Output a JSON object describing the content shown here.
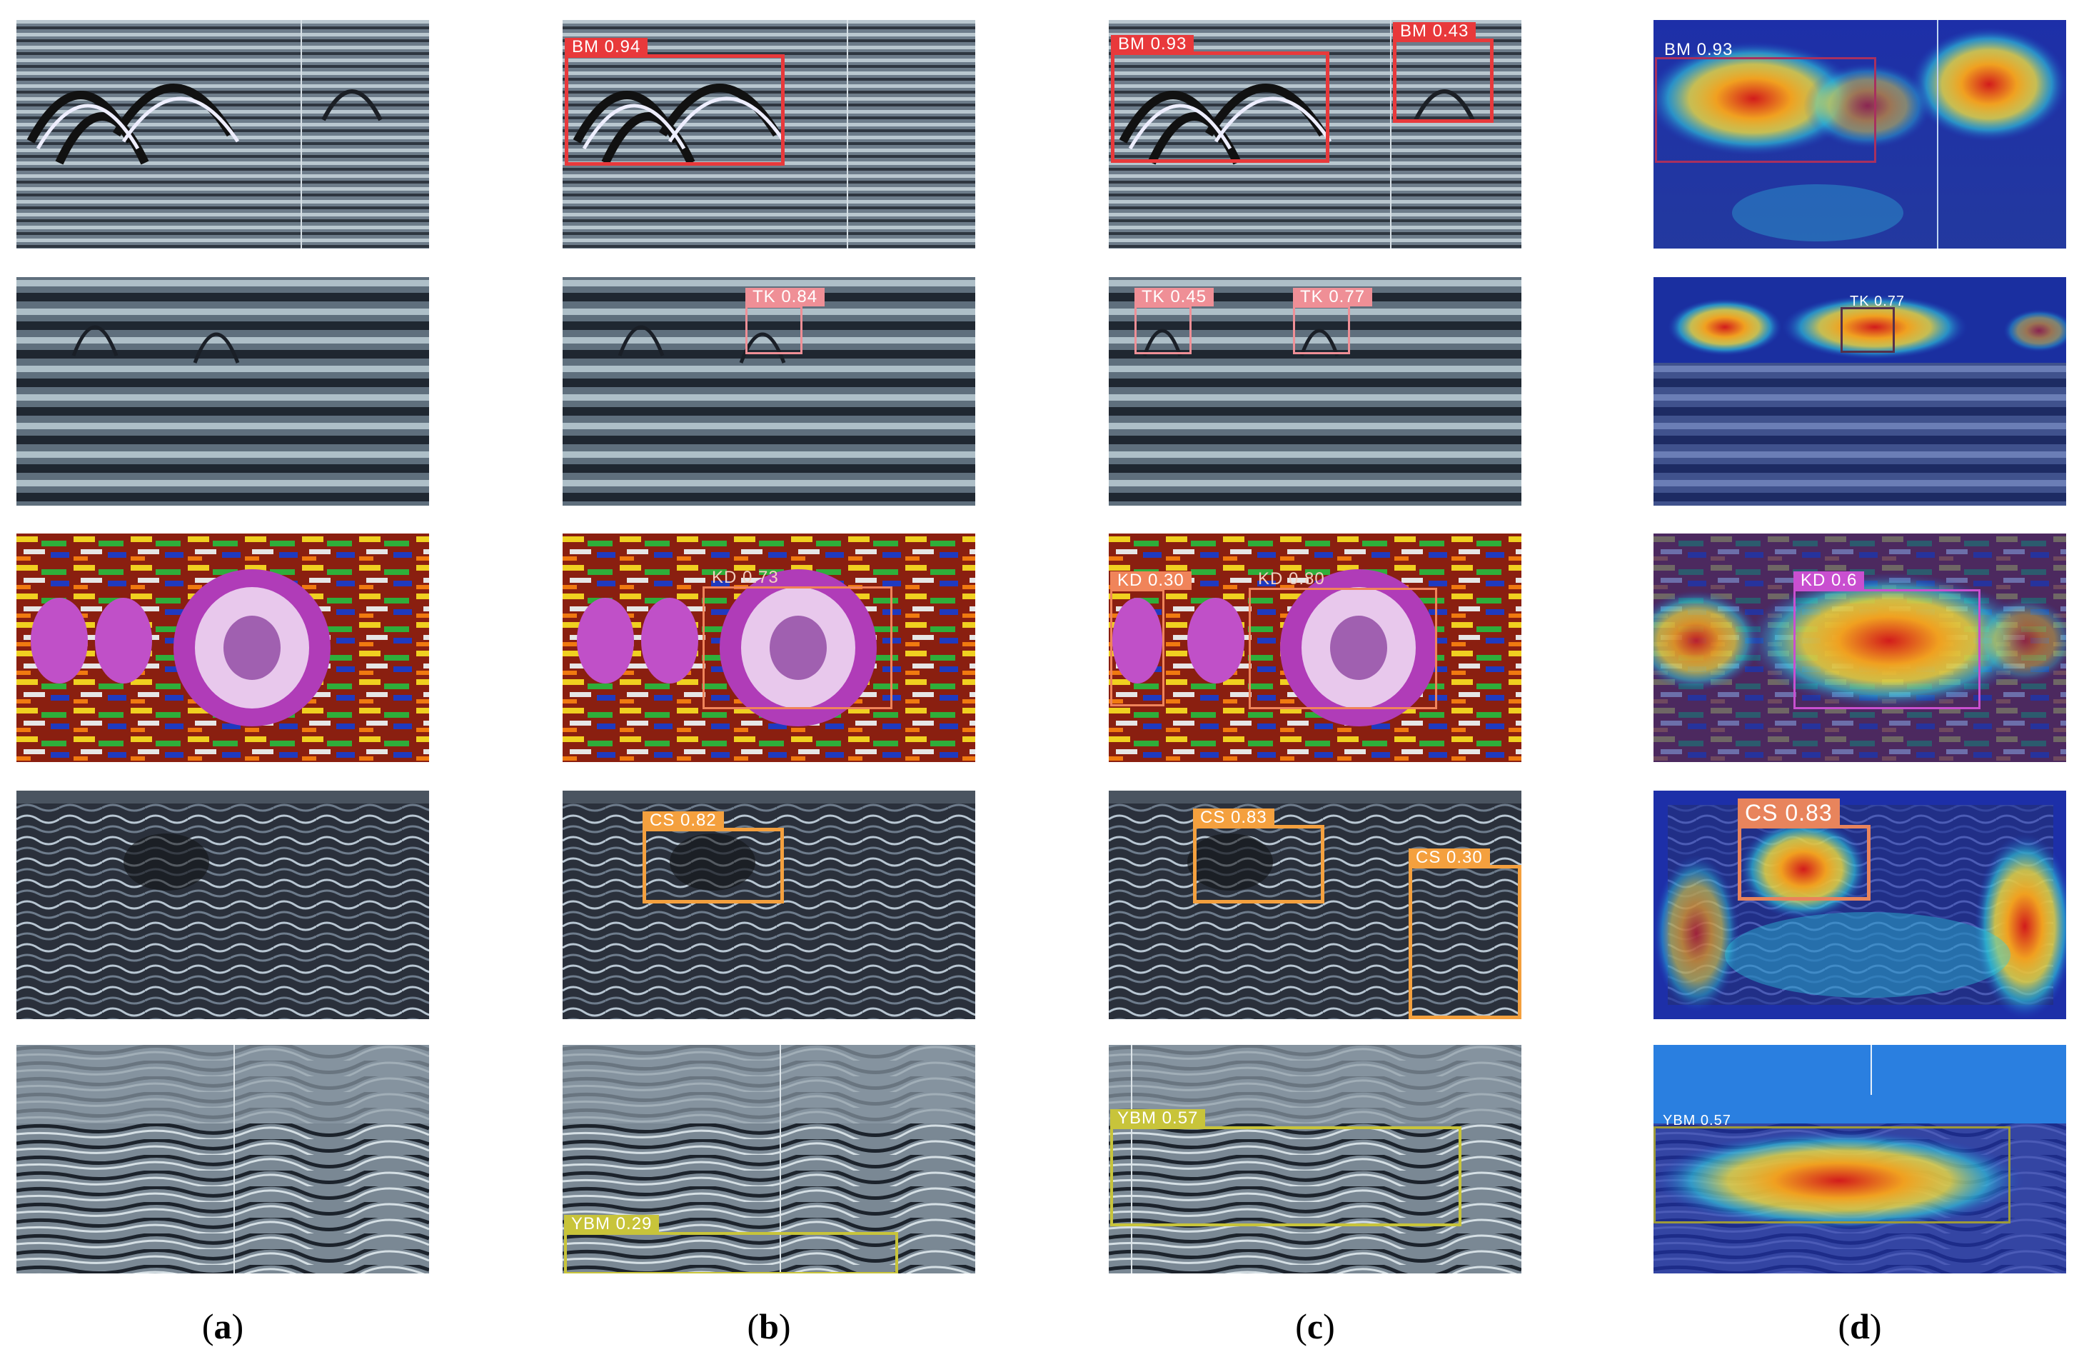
{
  "columns": [
    {
      "letter": "a",
      "caption": "(a)"
    },
    {
      "letter": "b",
      "caption": "(b)"
    },
    {
      "letter": "c",
      "caption": "(c)"
    },
    {
      "letter": "d",
      "caption": "(d)"
    }
  ],
  "rows": [
    {
      "texture": "gray-hyperbola",
      "panels": [
        {
          "detections": []
        },
        {
          "detections": [
            {
              "label": "BM 0.94",
              "class": "BM",
              "confidence": 0.94,
              "color": "#e8393b"
            }
          ]
        },
        {
          "detections": [
            {
              "label": "BM 0.93",
              "class": "BM",
              "confidence": 0.93,
              "color": "#e8393b"
            },
            {
              "label": "BM 0.43",
              "class": "BM",
              "confidence": 0.43,
              "color": "#e8393b"
            }
          ]
        },
        {
          "heatmap": true,
          "detections": [
            {
              "label": "BM 0.93",
              "class": "BM",
              "confidence": 0.93,
              "color": "#a8305f"
            }
          ]
        }
      ]
    },
    {
      "texture": "gray-stripes",
      "panels": [
        {
          "detections": []
        },
        {
          "detections": [
            {
              "label": "TK 0.84",
              "class": "TK",
              "confidence": 0.84,
              "color": "#ef8f96"
            }
          ]
        },
        {
          "detections": [
            {
              "label": "TK 0.45",
              "class": "TK",
              "confidence": 0.45,
              "color": "#ef8f96"
            },
            {
              "label": "TK 0.77",
              "class": "TK",
              "confidence": 0.77,
              "color": "#ef8f96"
            }
          ]
        },
        {
          "heatmap": true,
          "detections": [
            {
              "label": "TK 0.77",
              "class": "TK",
              "confidence": 0.77,
              "color": "#55304a"
            }
          ]
        }
      ]
    },
    {
      "texture": "color-rainbow",
      "panels": [
        {
          "detections": []
        },
        {
          "detections": [
            {
              "label": "KD 0.73",
              "class": "KD",
              "confidence": 0.73,
              "color": "#f0845a"
            }
          ]
        },
        {
          "detections": [
            {
              "label": "KD 0.30",
              "class": "KD",
              "confidence": 0.3,
              "color": "#f0845a"
            },
            {
              "label": "KD 0.80",
              "class": "KD",
              "confidence": 0.8,
              "color": "#f0845a"
            }
          ]
        },
        {
          "heatmap": true,
          "detections": [
            {
              "label": "KD 0.6",
              "class": "KD",
              "confidence": 0.6,
              "color": "#c94fd0"
            }
          ]
        }
      ]
    },
    {
      "texture": "dark-wavy",
      "panels": [
        {
          "detections": []
        },
        {
          "detections": [
            {
              "label": "CS 0.82",
              "class": "CS",
              "confidence": 0.82,
              "color": "#f4a03e"
            }
          ]
        },
        {
          "detections": [
            {
              "label": "CS 0.83",
              "class": "CS",
              "confidence": 0.83,
              "color": "#f4a03e"
            },
            {
              "label": "CS 0.30",
              "class": "CS",
              "confidence": 0.3,
              "color": "#f4a03e"
            }
          ]
        },
        {
          "heatmap": true,
          "detections": [
            {
              "label": "CS 0.83",
              "class": "CS",
              "confidence": 0.83,
              "color": "#e8845c"
            }
          ]
        }
      ]
    },
    {
      "texture": "gray-layers",
      "panels": [
        {
          "detections": []
        },
        {
          "detections": [
            {
              "label": "YBM 0.29",
              "class": "YBM",
              "confidence": 0.29,
              "color": "#c8c43a"
            }
          ]
        },
        {
          "detections": [
            {
              "label": "YBM 0.57",
              "class": "YBM",
              "confidence": 0.57,
              "color": "#c8c43a"
            }
          ]
        },
        {
          "heatmap": true,
          "detections": [
            {
              "label": "YBM 0.57",
              "class": "YBM",
              "confidence": 0.57,
              "color": "#9d9a3a"
            }
          ]
        }
      ]
    }
  ]
}
